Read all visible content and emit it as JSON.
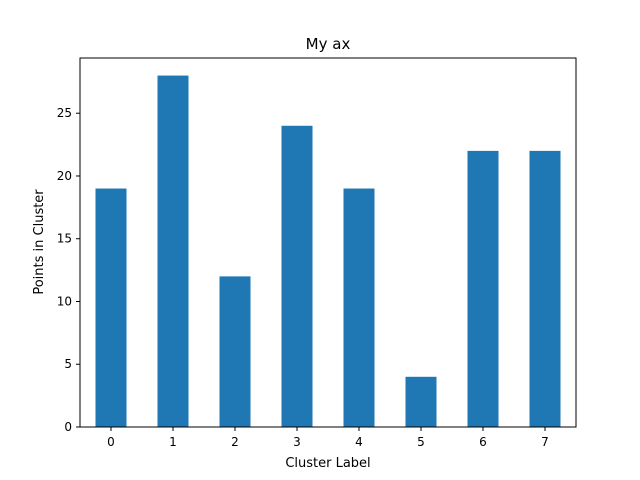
{
  "chart_data": {
    "type": "bar",
    "title": "My ax",
    "xlabel": "Cluster Label",
    "ylabel": "Points in Cluster",
    "categories": [
      "0",
      "1",
      "2",
      "3",
      "4",
      "5",
      "6",
      "7"
    ],
    "values": [
      19,
      28,
      12,
      24,
      19,
      4,
      22,
      22
    ],
    "ylim": [
      0,
      29.4
    ],
    "yticks": [
      0,
      5,
      10,
      15,
      20,
      25
    ],
    "grid": false,
    "bar_color": "#1f77b4"
  }
}
